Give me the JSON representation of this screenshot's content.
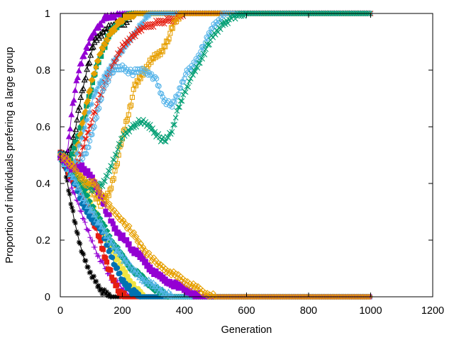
{
  "chart_data": {
    "type": "scatter",
    "title": "",
    "xlabel": "Generation",
    "ylabel": "Proportion of individuals prefering a large group",
    "xlim": [
      0,
      1200
    ],
    "ylim": [
      0,
      1
    ],
    "x_ticks": [
      "0",
      "200",
      "400",
      "600",
      "800",
      "1000",
      "1200"
    ],
    "y_ticks": [
      "0",
      "0.2",
      "0.4",
      "0.6",
      "0.8",
      "1"
    ],
    "x_tick_values": [
      0,
      200,
      400,
      600,
      800,
      1000,
      1200
    ],
    "y_tick_values": [
      0,
      0.2,
      0.4,
      0.6,
      0.8,
      1
    ],
    "grid": false,
    "legend": "none",
    "x_end": 1000,
    "series": [
      {
        "color": "#9400d3",
        "marker": "triangle-filled",
        "outcome": 1,
        "points": [
          [
            0,
            0.5
          ],
          [
            20,
            0.48
          ],
          [
            40,
            0.68
          ],
          [
            60,
            0.8
          ],
          [
            80,
            0.87
          ],
          [
            100,
            0.91
          ],
          [
            120,
            0.95
          ],
          [
            140,
            0.98
          ],
          [
            160,
            0.99
          ],
          [
            200,
            1
          ]
        ]
      },
      {
        "color": "#000000",
        "marker": "triangle-open",
        "outcome": 1,
        "points": [
          [
            0,
            0.5
          ],
          [
            30,
            0.5
          ],
          [
            50,
            0.6
          ],
          [
            70,
            0.72
          ],
          [
            90,
            0.82
          ],
          [
            110,
            0.9
          ],
          [
            140,
            0.94
          ],
          [
            180,
            0.96
          ],
          [
            210,
            0.97
          ],
          [
            230,
            1
          ]
        ]
      },
      {
        "color": "#009e73",
        "marker": "square-filled",
        "outcome": 1,
        "points": [
          [
            0,
            0.5
          ],
          [
            30,
            0.48
          ],
          [
            60,
            0.57
          ],
          [
            80,
            0.65
          ],
          [
            100,
            0.74
          ],
          [
            120,
            0.82
          ],
          [
            140,
            0.88
          ],
          [
            160,
            0.93
          ],
          [
            190,
            0.97
          ],
          [
            230,
            1
          ]
        ]
      },
      {
        "color": "#e69f00",
        "marker": "diamond-filled",
        "outcome": 1,
        "points": [
          [
            0,
            0.5
          ],
          [
            40,
            0.45
          ],
          [
            70,
            0.6
          ],
          [
            100,
            0.76
          ],
          [
            130,
            0.86
          ],
          [
            160,
            0.93
          ],
          [
            200,
            0.98
          ],
          [
            240,
            1
          ]
        ]
      },
      {
        "color": "#56b4e9",
        "marker": "asterisk",
        "outcome": 1,
        "points": [
          [
            0,
            0.5
          ],
          [
            40,
            0.45
          ],
          [
            80,
            0.6
          ],
          [
            110,
            0.72
          ],
          [
            140,
            0.77
          ],
          [
            170,
            0.83
          ],
          [
            210,
            0.88
          ],
          [
            250,
            0.95
          ],
          [
            290,
            1
          ]
        ]
      },
      {
        "color": "#e51e10",
        "marker": "x",
        "outcome": 1,
        "points": [
          [
            0,
            0.5
          ],
          [
            50,
            0.44
          ],
          [
            80,
            0.55
          ],
          [
            110,
            0.65
          ],
          [
            140,
            0.74
          ],
          [
            170,
            0.82
          ],
          [
            200,
            0.88
          ],
          [
            230,
            0.92
          ],
          [
            270,
            0.95
          ],
          [
            320,
            0.97
          ],
          [
            370,
            0.98
          ],
          [
            400,
            1
          ]
        ]
      },
      {
        "color": "#e69f00",
        "marker": "square-open",
        "outcome": 1,
        "points": [
          [
            0,
            0.5
          ],
          [
            50,
            0.45
          ],
          [
            100,
            0.38
          ],
          [
            130,
            0.33
          ],
          [
            160,
            0.37
          ],
          [
            180,
            0.46
          ],
          [
            200,
            0.56
          ],
          [
            220,
            0.65
          ],
          [
            240,
            0.74
          ],
          [
            270,
            0.8
          ],
          [
            300,
            0.84
          ],
          [
            330,
            0.87
          ],
          [
            350,
            0.92
          ],
          [
            370,
            0.97
          ],
          [
            390,
            1
          ]
        ]
      },
      {
        "color": "#56b4e9",
        "marker": "circle-open",
        "outcome": 1,
        "points": [
          [
            0,
            0.5
          ],
          [
            40,
            0.44
          ],
          [
            80,
            0.5
          ],
          [
            110,
            0.6
          ],
          [
            140,
            0.74
          ],
          [
            170,
            0.8
          ],
          [
            200,
            0.81
          ],
          [
            230,
            0.79
          ],
          [
            260,
            0.8
          ],
          [
            290,
            0.79
          ],
          [
            310,
            0.76
          ],
          [
            330,
            0.7
          ],
          [
            360,
            0.67
          ],
          [
            380,
            0.72
          ],
          [
            400,
            0.78
          ],
          [
            430,
            0.82
          ],
          [
            460,
            0.88
          ],
          [
            490,
            0.95
          ],
          [
            530,
            1
          ]
        ]
      },
      {
        "color": "#009e73",
        "marker": "x",
        "outcome": 1,
        "points": [
          [
            0,
            0.5
          ],
          [
            50,
            0.42
          ],
          [
            100,
            0.38
          ],
          [
            140,
            0.4
          ],
          [
            170,
            0.48
          ],
          [
            200,
            0.56
          ],
          [
            230,
            0.6
          ],
          [
            260,
            0.62
          ],
          [
            290,
            0.6
          ],
          [
            320,
            0.56
          ],
          [
            340,
            0.55
          ],
          [
            360,
            0.59
          ],
          [
            380,
            0.66
          ],
          [
            400,
            0.72
          ],
          [
            420,
            0.77
          ],
          [
            450,
            0.83
          ],
          [
            480,
            0.9
          ],
          [
            520,
            0.96
          ],
          [
            560,
            0.99
          ],
          [
            600,
            1
          ]
        ]
      },
      {
        "color": "#000000",
        "marker": "asterisk",
        "outcome": 0,
        "points": [
          [
            0,
            0.5
          ],
          [
            15,
            0.45
          ],
          [
            30,
            0.36
          ],
          [
            45,
            0.27
          ],
          [
            60,
            0.2
          ],
          [
            75,
            0.14
          ],
          [
            90,
            0.1
          ],
          [
            105,
            0.07
          ],
          [
            120,
            0.04
          ],
          [
            135,
            0.02
          ],
          [
            150,
            0.01
          ],
          [
            165,
            0
          ]
        ]
      },
      {
        "color": "#9400d3",
        "marker": "plus",
        "outcome": 0,
        "points": [
          [
            0,
            0.5
          ],
          [
            20,
            0.45
          ],
          [
            40,
            0.38
          ],
          [
            60,
            0.32
          ],
          [
            80,
            0.26
          ],
          [
            100,
            0.2
          ],
          [
            120,
            0.15
          ],
          [
            140,
            0.11
          ],
          [
            160,
            0.07
          ],
          [
            180,
            0.05
          ],
          [
            200,
            0.03
          ],
          [
            220,
            0.01
          ],
          [
            240,
            0
          ]
        ]
      },
      {
        "color": "#e51e10",
        "marker": "square-filled",
        "outcome": 0,
        "points": [
          [
            0,
            0.5
          ],
          [
            30,
            0.44
          ],
          [
            60,
            0.38
          ],
          [
            90,
            0.32
          ],
          [
            110,
            0.26
          ],
          [
            130,
            0.19
          ],
          [
            150,
            0.12
          ],
          [
            170,
            0.06
          ],
          [
            190,
            0.02
          ],
          [
            210,
            0
          ]
        ]
      },
      {
        "color": "#f0e442",
        "marker": "circle-filled",
        "outcome": 0,
        "points": [
          [
            0,
            0.5
          ],
          [
            30,
            0.45
          ],
          [
            60,
            0.4
          ],
          [
            90,
            0.35
          ],
          [
            120,
            0.28
          ],
          [
            150,
            0.2
          ],
          [
            180,
            0.14
          ],
          [
            210,
            0.08
          ],
          [
            240,
            0.03
          ],
          [
            270,
            0
          ]
        ]
      },
      {
        "color": "#0072b2",
        "marker": "circle-filled",
        "outcome": 0,
        "points": [
          [
            0,
            0.5
          ],
          [
            40,
            0.42
          ],
          [
            70,
            0.33
          ],
          [
            100,
            0.28
          ],
          [
            130,
            0.24
          ],
          [
            160,
            0.16
          ],
          [
            180,
            0.1
          ],
          [
            200,
            0.06
          ],
          [
            230,
            0.02
          ],
          [
            260,
            0
          ]
        ]
      },
      {
        "color": "#009e73",
        "marker": "diamond-filled",
        "outcome": 0,
        "points": [
          [
            0,
            0.5
          ],
          [
            40,
            0.44
          ],
          [
            80,
            0.37
          ],
          [
            110,
            0.3
          ],
          [
            140,
            0.25
          ],
          [
            170,
            0.19
          ],
          [
            200,
            0.14
          ],
          [
            230,
            0.1
          ],
          [
            260,
            0.07
          ],
          [
            290,
            0.04
          ],
          [
            320,
            0.02
          ],
          [
            350,
            0
          ]
        ]
      },
      {
        "color": "#56b4e9",
        "marker": "triangle-open",
        "outcome": 0,
        "points": [
          [
            0,
            0.5
          ],
          [
            40,
            0.42
          ],
          [
            80,
            0.34
          ],
          [
            120,
            0.27
          ],
          [
            160,
            0.2
          ],
          [
            200,
            0.14
          ],
          [
            240,
            0.09
          ],
          [
            270,
            0.06
          ],
          [
            300,
            0.04
          ],
          [
            330,
            0.02
          ],
          [
            360,
            0
          ]
        ]
      },
      {
        "color": "#9400d3",
        "marker": "square-filled",
        "outcome": 0,
        "points": [
          [
            0,
            0.5
          ],
          [
            40,
            0.45
          ],
          [
            70,
            0.46
          ],
          [
            100,
            0.42
          ],
          [
            130,
            0.36
          ],
          [
            150,
            0.3
          ],
          [
            170,
            0.25
          ],
          [
            190,
            0.22
          ],
          [
            210,
            0.2
          ],
          [
            230,
            0.17
          ],
          [
            260,
            0.14
          ],
          [
            290,
            0.1
          ],
          [
            320,
            0.07
          ],
          [
            350,
            0.05
          ],
          [
            380,
            0.04
          ],
          [
            410,
            0.02
          ],
          [
            430,
            0.01
          ],
          [
            450,
            0
          ]
        ]
      },
      {
        "color": "#e69f00",
        "marker": "diamond-open",
        "outcome": 0,
        "points": [
          [
            0,
            0.5
          ],
          [
            40,
            0.46
          ],
          [
            80,
            0.4
          ],
          [
            110,
            0.4
          ],
          [
            140,
            0.35
          ],
          [
            170,
            0.3
          ],
          [
            200,
            0.27
          ],
          [
            230,
            0.23
          ],
          [
            260,
            0.18
          ],
          [
            290,
            0.14
          ],
          [
            320,
            0.11
          ],
          [
            350,
            0.09
          ],
          [
            380,
            0.07
          ],
          [
            410,
            0.05
          ],
          [
            440,
            0.03
          ],
          [
            470,
            0.01
          ],
          [
            500,
            0
          ]
        ]
      }
    ]
  }
}
